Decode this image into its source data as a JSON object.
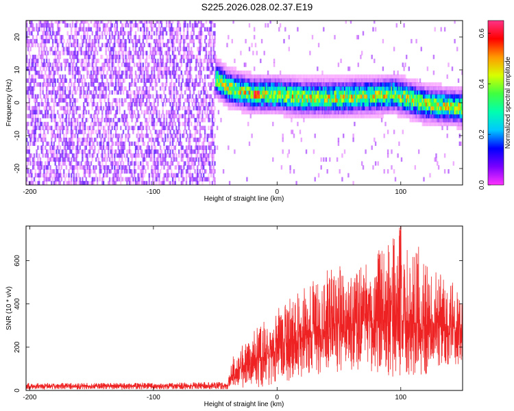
{
  "figure": {
    "title": "S225.2026.028.02.37.E19"
  },
  "chart_data": [
    {
      "type": "heatmap",
      "xlabel": "Height of straight line (km)",
      "ylabel": "Frequency (Hz)",
      "xlim": [
        -203,
        150
      ],
      "ylim": [
        -25,
        25
      ],
      "xticks": [
        -200,
        -100,
        0,
        100
      ],
      "yticks": [
        -20,
        -10,
        0,
        10,
        20
      ],
      "colorbar": {
        "label": "Normalized spectral amplitude",
        "range": [
          0,
          0.65
        ],
        "ticks": [
          0.0,
          0.2,
          0.4,
          0.6
        ],
        "colormap": [
          "#ff33ff",
          "#7a00ff",
          "#0000ff",
          "#00c8ff",
          "#00ffb0",
          "#40ff40",
          "#d8ff00",
          "#ff9900",
          "#ff0000",
          "#ff3388"
        ]
      },
      "regions": [
        {
          "x_range": [
            -203,
            -50
          ],
          "content": "broadband noise",
          "frequency_range": [
            -25,
            25
          ],
          "amplitude": [
            0.0,
            0.1
          ]
        },
        {
          "x_range": [
            -50,
            150
          ],
          "content": "signal band",
          "center_frequency": [
            [
              -50,
              7
            ],
            [
              -40,
              4
            ],
            [
              -20,
              2
            ],
            [
              0,
              2
            ],
            [
              20,
              1
            ],
            [
              50,
              1
            ],
            [
              95,
              2
            ],
            [
              120,
              -1
            ],
            [
              150,
              -2
            ]
          ],
          "half_width_hz": 4,
          "peak_amplitude": 0.65,
          "peak_x": -17
        }
      ],
      "grid": false
    },
    {
      "type": "line",
      "xlabel": "Height of straight line (km)",
      "ylabel": "SNR (10 * v/v)",
      "xlim": [
        -203,
        150
      ],
      "ylim": [
        0,
        760
      ],
      "xticks": [
        -200,
        -100,
        0,
        100
      ],
      "yticks": [
        0,
        200,
        400,
        600
      ],
      "series": [
        {
          "color": "#ee2222",
          "envelope": [
            {
              "x": -203,
              "low": 5,
              "mean": 20,
              "high": 35
            },
            {
              "x": -100,
              "low": 5,
              "mean": 20,
              "high": 35
            },
            {
              "x": -40,
              "low": 5,
              "mean": 22,
              "high": 40
            },
            {
              "x": -38,
              "low": 20,
              "mean": 60,
              "high": 120
            },
            {
              "x": -30,
              "low": 10,
              "mean": 100,
              "high": 250
            },
            {
              "x": -20,
              "low": 20,
              "mean": 130,
              "high": 280
            },
            {
              "x": -10,
              "low": 10,
              "mean": 160,
              "high": 320
            },
            {
              "x": 0,
              "low": 30,
              "mean": 200,
              "high": 380
            },
            {
              "x": 20,
              "low": 60,
              "mean": 250,
              "high": 470
            },
            {
              "x": 40,
              "low": 80,
              "mean": 290,
              "high": 560
            },
            {
              "x": 70,
              "low": 80,
              "mean": 320,
              "high": 600
            },
            {
              "x": 100,
              "low": 60,
              "mean": 320,
              "high": 760
            },
            {
              "x": 130,
              "low": 80,
              "mean": 300,
              "high": 560
            },
            {
              "x": 150,
              "low": 130,
              "mean": 280,
              "high": 460
            }
          ]
        }
      ],
      "grid": false
    }
  ]
}
